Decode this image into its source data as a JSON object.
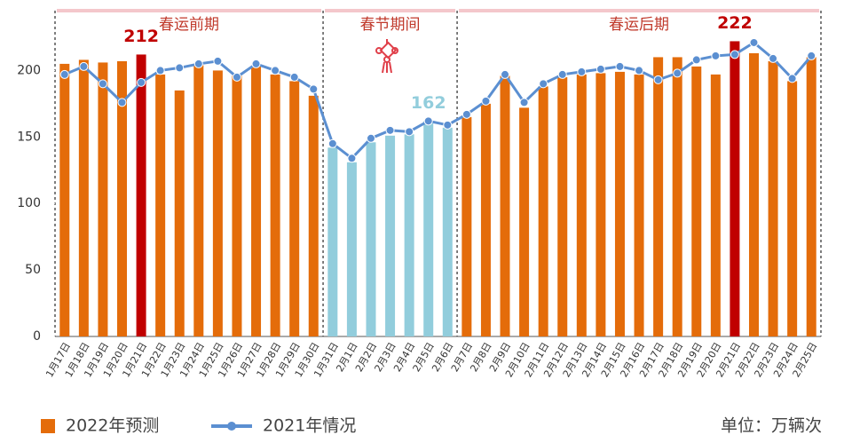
{
  "chart_data": {
    "type": "bar-line",
    "periods": [
      "春运前期",
      "春节期间",
      "春运后期"
    ],
    "categories": [
      "1月17日",
      "1月18日",
      "1月19日",
      "1月20日",
      "1月21日",
      "1月22日",
      "1月23日",
      "1月24日",
      "1月25日",
      "1月26日",
      "1月27日",
      "1月28日",
      "1月29日",
      "1月30日",
      "1月31日",
      "2月1日",
      "2月2日",
      "2月3日",
      "2月4日",
      "2月5日",
      "2月6日",
      "2月7日",
      "2月8日",
      "2月9日",
      "2月10日",
      "2月11日",
      "2月12日",
      "2月13日",
      "2月14日",
      "2月15日",
      "2月16日",
      "2月17日",
      "2月18日",
      "2月19日",
      "2月20日",
      "2月21日",
      "2月22日",
      "2月23日",
      "2月24日",
      "2月25日"
    ],
    "series": [
      {
        "name": "2022年预测",
        "color": "#e46c0a",
        "values": [
          205,
          208,
          206,
          207,
          212,
          197,
          185,
          204,
          200,
          196,
          203,
          197,
          192,
          181,
          142,
          131,
          146,
          151,
          152,
          162,
          157,
          165,
          175,
          196,
          172,
          188,
          195,
          197,
          198,
          199,
          197,
          210,
          210,
          203,
          197,
          222,
          213,
          207,
          192,
          210
        ],
        "colors": [
          "#e46c0a",
          "#e46c0a",
          "#e46c0a",
          "#e46c0a",
          "#c00000",
          "#e46c0a",
          "#e46c0a",
          "#e46c0a",
          "#e46c0a",
          "#e46c0a",
          "#e46c0a",
          "#e46c0a",
          "#e46c0a",
          "#e46c0a",
          "#92cddc",
          "#92cddc",
          "#92cddc",
          "#92cddc",
          "#92cddc",
          "#92cddc",
          "#92cddc",
          "#e46c0a",
          "#e46c0a",
          "#e46c0a",
          "#e46c0a",
          "#e46c0a",
          "#e46c0a",
          "#e46c0a",
          "#e46c0a",
          "#e46c0a",
          "#e46c0a",
          "#e46c0a",
          "#e46c0a",
          "#e46c0a",
          "#e46c0a",
          "#c00000",
          "#e46c0a",
          "#e46c0a",
          "#e46c0a",
          "#e46c0a"
        ],
        "labels_at": [
          4,
          19,
          35
        ]
      },
      {
        "name": "2021年情况",
        "color": "#5b8fd1",
        "values": [
          197,
          203,
          190,
          176,
          191,
          200,
          202,
          205,
          207,
          195,
          205,
          200,
          195,
          186,
          145,
          134,
          149,
          155,
          154,
          162,
          159,
          167,
          177,
          197,
          176,
          190,
          197,
          199,
          201,
          203,
          200,
          193,
          198,
          208,
          211,
          212,
          221,
          209,
          194,
          211
        ]
      }
    ],
    "unit": "单位：万辆次",
    "ylim": [
      0,
      245
    ],
    "yticks": [
      0,
      50,
      100,
      150,
      200
    ]
  }
}
